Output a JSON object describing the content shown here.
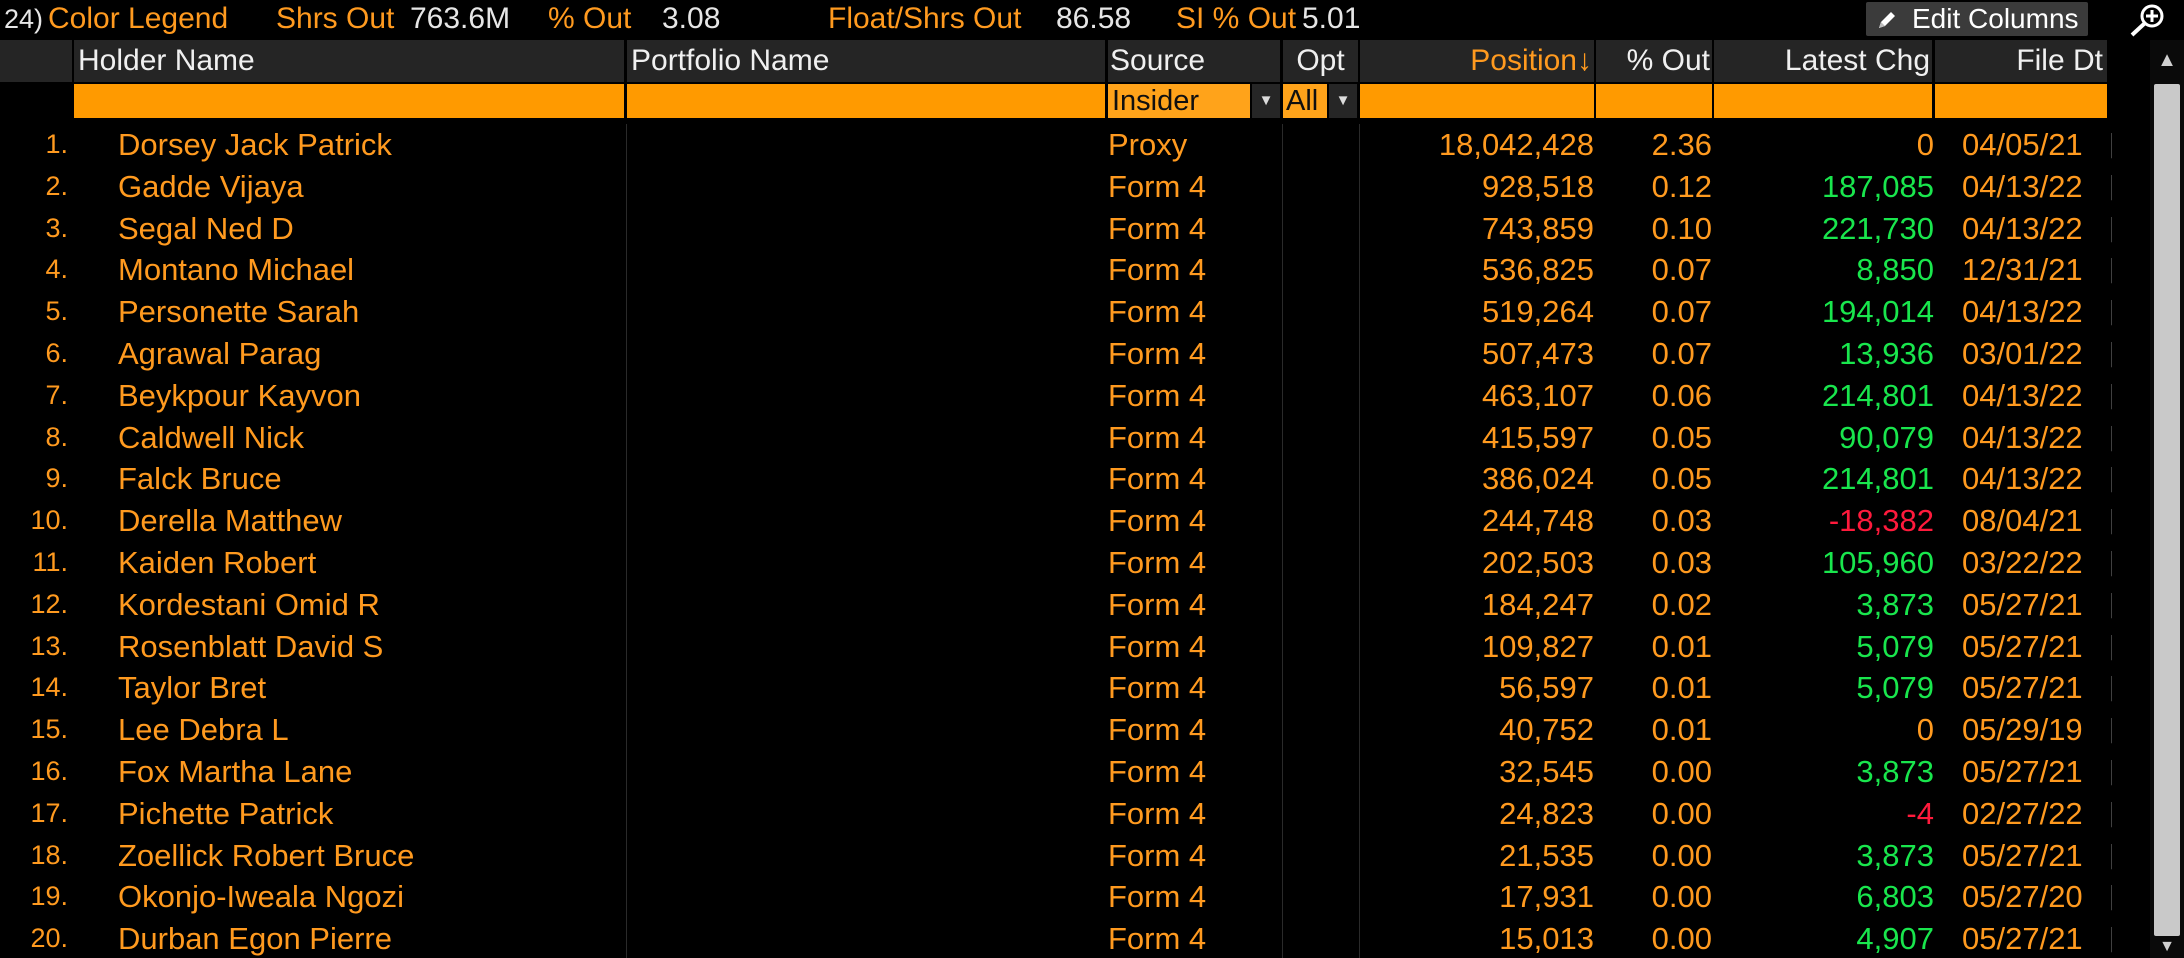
{
  "topbar": {
    "legend_num": "24)",
    "legend_label": "Color Legend",
    "shrs_out_label": "Shrs Out",
    "shrs_out_value": "763.6M",
    "pct_out_label": "% Out",
    "pct_out_value": "3.08",
    "float_label": "Float/Shrs Out",
    "float_value": "86.58",
    "si_label": "SI % Out",
    "si_value": "5.01",
    "edit_columns_label": "Edit Columns"
  },
  "columns": {
    "holder": "Holder Name",
    "portfolio": "Portfolio Name",
    "source": "Source",
    "opt": "Opt",
    "position": "Position↓",
    "pct_out": "% Out",
    "latest_chg": "Latest Chg",
    "file_dt": "File Dt"
  },
  "filters": {
    "source_value": "Insider",
    "opt_value": "All"
  },
  "colors": {
    "accent": "#ff9a1f",
    "positive": "#19e64d",
    "negative": "#ff1a3c",
    "filter_bg": "#ff9a00",
    "header_bg": "#252525"
  },
  "rows": [
    {
      "idx": "1.",
      "name": "Dorsey Jack Patrick",
      "source": "Proxy",
      "position": "18,042,428",
      "pct": "2.36",
      "chg": "0",
      "chg_sign": "zero",
      "date": "04/05/21"
    },
    {
      "idx": "2.",
      "name": "Gadde Vijaya",
      "source": "Form 4",
      "position": "928,518",
      "pct": "0.12",
      "chg": "187,085",
      "chg_sign": "pos",
      "date": "04/13/22"
    },
    {
      "idx": "3.",
      "name": "Segal Ned D",
      "source": "Form 4",
      "position": "743,859",
      "pct": "0.10",
      "chg": "221,730",
      "chg_sign": "pos",
      "date": "04/13/22"
    },
    {
      "idx": "4.",
      "name": "Montano Michael",
      "source": "Form 4",
      "position": "536,825",
      "pct": "0.07",
      "chg": "8,850",
      "chg_sign": "pos",
      "date": "12/31/21"
    },
    {
      "idx": "5.",
      "name": "Personette Sarah",
      "source": "Form 4",
      "position": "519,264",
      "pct": "0.07",
      "chg": "194,014",
      "chg_sign": "pos",
      "date": "04/13/22"
    },
    {
      "idx": "6.",
      "name": "Agrawal Parag",
      "source": "Form 4",
      "position": "507,473",
      "pct": "0.07",
      "chg": "13,936",
      "chg_sign": "pos",
      "date": "03/01/22"
    },
    {
      "idx": "7.",
      "name": "Beykpour Kayvon",
      "source": "Form 4",
      "position": "463,107",
      "pct": "0.06",
      "chg": "214,801",
      "chg_sign": "pos",
      "date": "04/13/22"
    },
    {
      "idx": "8.",
      "name": "Caldwell Nick",
      "source": "Form 4",
      "position": "415,597",
      "pct": "0.05",
      "chg": "90,079",
      "chg_sign": "pos",
      "date": "04/13/22"
    },
    {
      "idx": "9.",
      "name": "Falck Bruce",
      "source": "Form 4",
      "position": "386,024",
      "pct": "0.05",
      "chg": "214,801",
      "chg_sign": "pos",
      "date": "04/13/22"
    },
    {
      "idx": "10.",
      "name": "Derella Matthew",
      "source": "Form 4",
      "position": "244,748",
      "pct": "0.03",
      "chg": "-18,382",
      "chg_sign": "neg",
      "date": "08/04/21"
    },
    {
      "idx": "11.",
      "name": "Kaiden Robert",
      "source": "Form 4",
      "position": "202,503",
      "pct": "0.03",
      "chg": "105,960",
      "chg_sign": "pos",
      "date": "03/22/22"
    },
    {
      "idx": "12.",
      "name": "Kordestani Omid R",
      "source": "Form 4",
      "position": "184,247",
      "pct": "0.02",
      "chg": "3,873",
      "chg_sign": "pos",
      "date": "05/27/21"
    },
    {
      "idx": "13.",
      "name": "Rosenblatt David S",
      "source": "Form 4",
      "position": "109,827",
      "pct": "0.01",
      "chg": "5,079",
      "chg_sign": "pos",
      "date": "05/27/21"
    },
    {
      "idx": "14.",
      "name": "Taylor Bret",
      "source": "Form 4",
      "position": "56,597",
      "pct": "0.01",
      "chg": "5,079",
      "chg_sign": "pos",
      "date": "05/27/21"
    },
    {
      "idx": "15.",
      "name": "Lee Debra L",
      "source": "Form 4",
      "position": "40,752",
      "pct": "0.01",
      "chg": "0",
      "chg_sign": "zero",
      "date": "05/29/19"
    },
    {
      "idx": "16.",
      "name": "Fox Martha Lane",
      "source": "Form 4",
      "position": "32,545",
      "pct": "0.00",
      "chg": "3,873",
      "chg_sign": "pos",
      "date": "05/27/21"
    },
    {
      "idx": "17.",
      "name": "Pichette Patrick",
      "source": "Form 4",
      "position": "24,823",
      "pct": "0.00",
      "chg": "-4",
      "chg_sign": "neg",
      "date": "02/27/22"
    },
    {
      "idx": "18.",
      "name": "Zoellick Robert Bruce",
      "source": "Form 4",
      "position": "21,535",
      "pct": "0.00",
      "chg": "3,873",
      "chg_sign": "pos",
      "date": "05/27/21"
    },
    {
      "idx": "19.",
      "name": "Okonjo-Iweala Ngozi",
      "source": "Form 4",
      "position": "17,931",
      "pct": "0.00",
      "chg": "6,803",
      "chg_sign": "pos",
      "date": "05/27/20"
    },
    {
      "idx": "20.",
      "name": "Durban Egon Pierre",
      "source": "Form 4",
      "position": "15,013",
      "pct": "0.00",
      "chg": "4,907",
      "chg_sign": "pos",
      "date": "05/27/21"
    }
  ]
}
